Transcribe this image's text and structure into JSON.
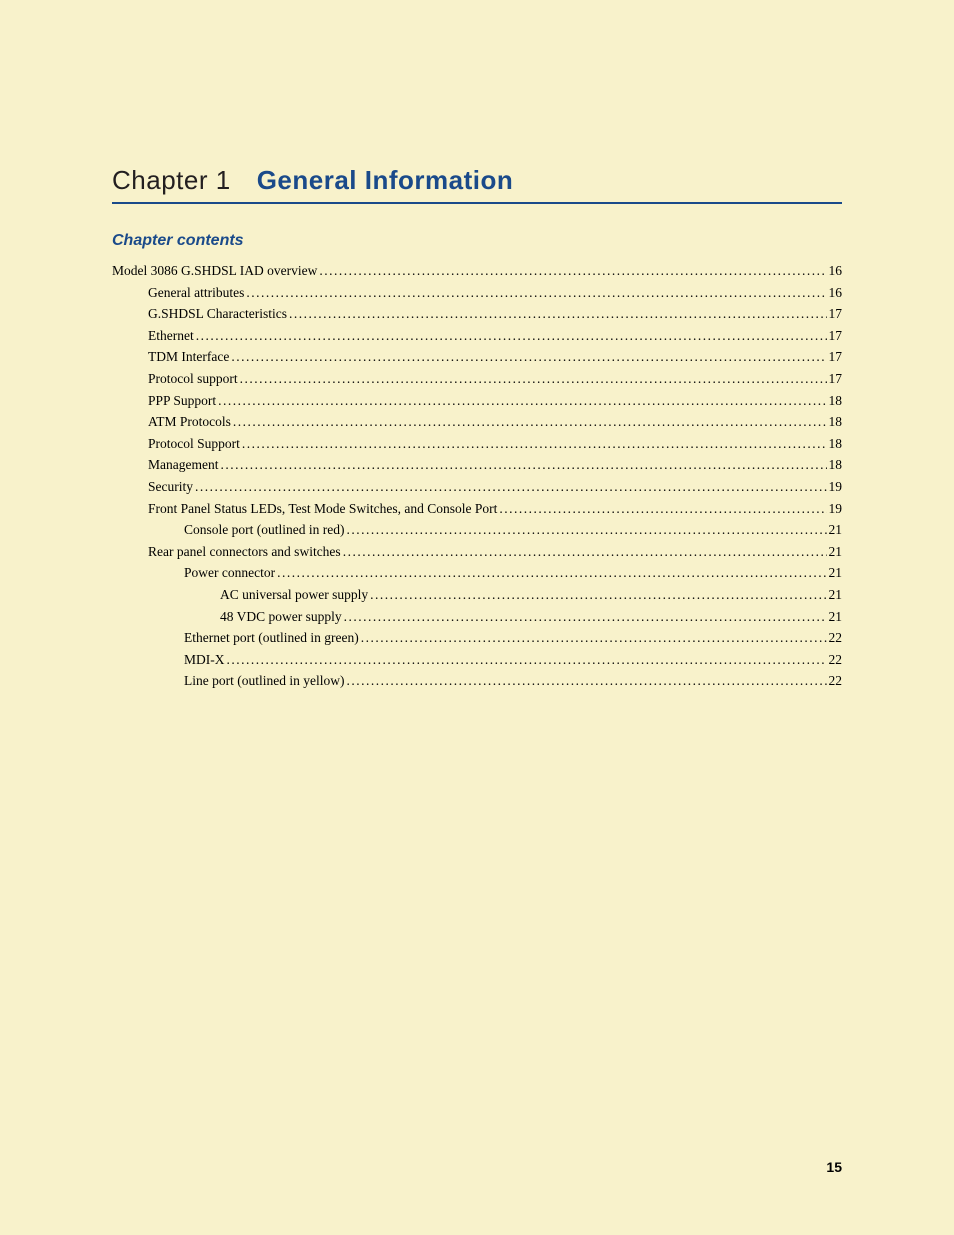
{
  "chapter": {
    "label": "Chapter 1",
    "title": "General Information"
  },
  "contents_heading": "Chapter contents",
  "toc": [
    {
      "label": "Model 3086 G.SHDSL IAD overview",
      "page": "16",
      "indent": 0
    },
    {
      "label": "General attributes",
      "page": "16",
      "indent": 1
    },
    {
      "label": "G.SHDSL Characteristics",
      "page": "17",
      "indent": 1
    },
    {
      "label": "Ethernet",
      "page": "17",
      "indent": 1
    },
    {
      "label": "TDM Interface",
      "page": "17",
      "indent": 1
    },
    {
      "label": "Protocol support",
      "page": "17",
      "indent": 1
    },
    {
      "label": "PPP Support",
      "page": "18",
      "indent": 1
    },
    {
      "label": "ATM Protocols",
      "page": "18",
      "indent": 1
    },
    {
      "label": "Protocol Support",
      "page": "18",
      "indent": 1
    },
    {
      "label": "Management",
      "page": "18",
      "indent": 1
    },
    {
      "label": "Security",
      "page": "19",
      "indent": 1
    },
    {
      "label": "Front Panel Status LEDs, Test Mode Switches, and Console Port",
      "page": "19",
      "indent": 1
    },
    {
      "label": "Console port (outlined in red)",
      "page": "21",
      "indent": 2
    },
    {
      "label": "Rear panel connectors and switches",
      "page": "21",
      "indent": 1
    },
    {
      "label": "Power connector",
      "page": "21",
      "indent": 2
    },
    {
      "label": "AC universal power supply",
      "page": "21",
      "indent": 3
    },
    {
      "label": "48 VDC power supply",
      "page": "21",
      "indent": 3
    },
    {
      "label": "Ethernet port (outlined in green)",
      "page": "22",
      "indent": 2
    },
    {
      "label": "MDI-X",
      "page": "22",
      "indent": 2
    },
    {
      "label": "Line port (outlined in yellow)",
      "page": "22",
      "indent": 2
    }
  ],
  "page_number": "15"
}
